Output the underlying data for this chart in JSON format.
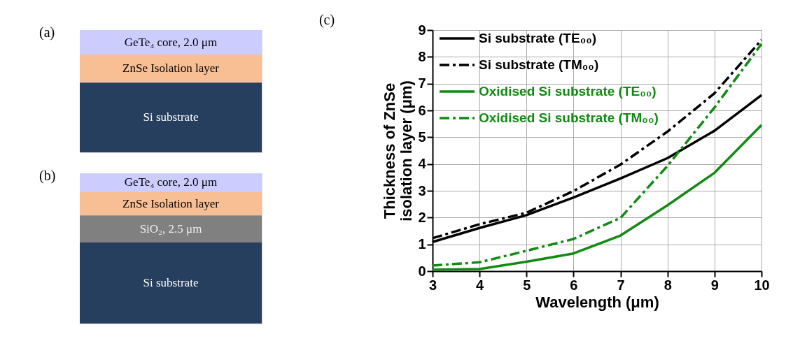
{
  "chart_data": [
    {
      "type": "other",
      "title": "(a)",
      "annotations": [
        "GeTe₄ core, 2.0 μm",
        "ZnSe Isolation layer",
        "Si substrate"
      ],
      "colors": [
        "#ccccff",
        "#f8be94",
        "#273f5f"
      ]
    },
    {
      "type": "other",
      "title": "(b)",
      "annotations": [
        "GeTe₄ core, 2.0 μm",
        "ZnSe Isolation layer",
        "SiO₂, 2.5 μm",
        "Si substrate"
      ],
      "colors": [
        "#ccccff",
        "#f8be94",
        "#808080",
        "#273f5f"
      ]
    },
    {
      "type": "line",
      "title": "(c)",
      "xlabel": "Wavelength (μm)",
      "ylabel": "Thickness of ZnSe isolation layer (μm)",
      "x": [
        3,
        4,
        5,
        6,
        7,
        8,
        9,
        10
      ],
      "series": [
        {
          "name": "Si substrate (TE₀₀)",
          "color": "#000000",
          "line_style": "solid",
          "values": [
            1.09,
            1.61,
            2.09,
            2.75,
            3.46,
            4.22,
            5.24,
            6.57
          ]
        },
        {
          "name": "Si substrate (TM₀₀)",
          "color": "#000000",
          "line_style": "dashed",
          "values": [
            1.23,
            1.75,
            2.18,
            2.99,
            3.98,
            5.21,
            6.64,
            8.63
          ]
        },
        {
          "name": "Oxidised Si substrate (TE₀₀)",
          "color": "#138a13",
          "line_style": "solid",
          "values": [
            0.05,
            0.08,
            0.35,
            0.66,
            1.33,
            2.46,
            3.67,
            5.45
          ]
        },
        {
          "name": "Oxidised Si substrate (TM₀₀)",
          "color": "#138a13",
          "line_style": "dashed",
          "values": [
            0.21,
            0.33,
            0.76,
            1.2,
            1.99,
            3.93,
            6.11,
            8.48
          ]
        }
      ],
      "xlim": [
        3,
        10
      ],
      "xticks": [
        3,
        4,
        5,
        6,
        7,
        8,
        9,
        10
      ],
      "ylim": [
        0,
        9
      ],
      "yticks": [
        0,
        1,
        2,
        3,
        4,
        5,
        6,
        7,
        8,
        9
      ],
      "grid": true,
      "legend": "top left",
      "marker": "none"
    }
  ]
}
